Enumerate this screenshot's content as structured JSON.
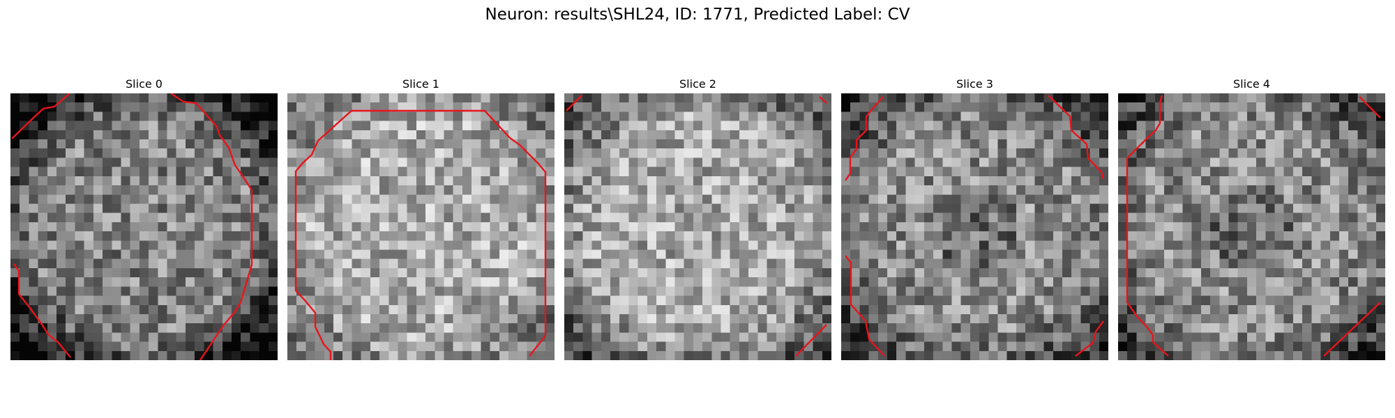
{
  "figure": {
    "title": "Neuron: results\\SHL24, ID: 1771, Predicted Label: CV",
    "contour_color": "#e8141c",
    "colormap": "gray"
  },
  "slices": [
    {
      "title": "Slice 0",
      "mean_intensity": 0.52,
      "edge_darkening": 0.55
    },
    {
      "title": "Slice 1",
      "mean_intensity": 0.68,
      "edge_darkening": 0.25
    },
    {
      "title": "Slice 2",
      "mean_intensity": 0.66,
      "edge_darkening": 0.35
    },
    {
      "title": "Slice 3",
      "mean_intensity": 0.55,
      "edge_darkening": 0.35
    },
    {
      "title": "Slice 4",
      "mean_intensity": 0.55,
      "edge_darkening": 0.3
    }
  ]
}
